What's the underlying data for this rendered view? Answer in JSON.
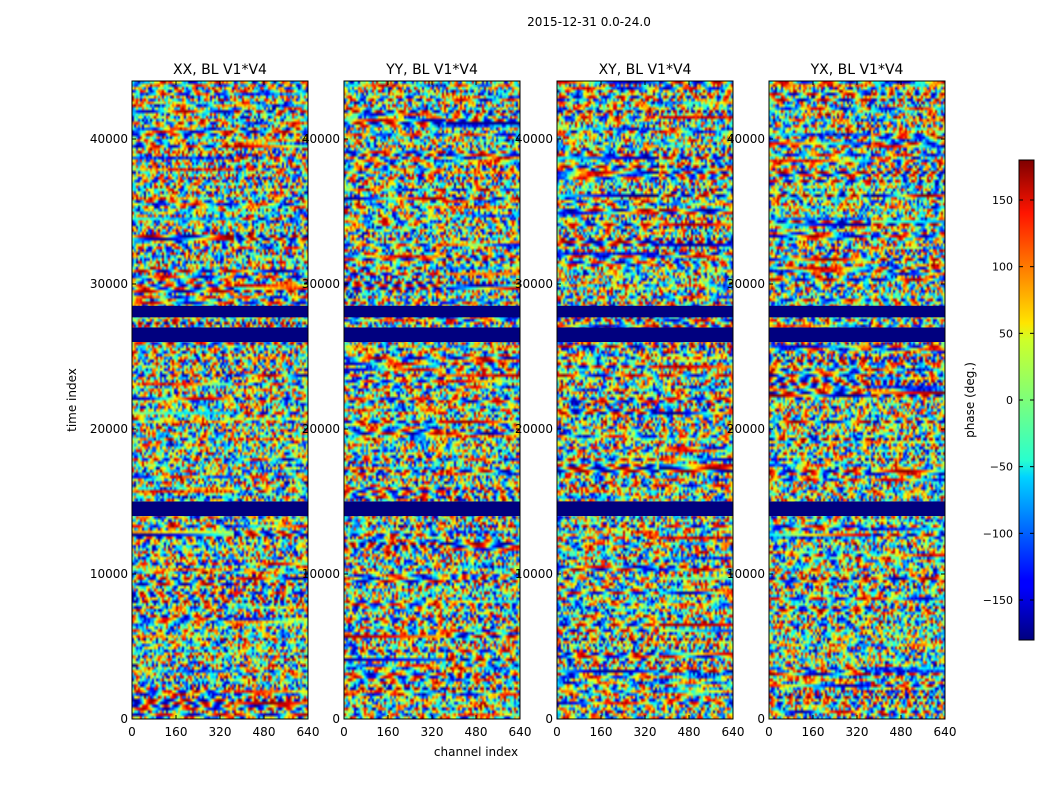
{
  "figure": {
    "suptitle": "2015-12-31 0.0-24.0",
    "xlabel": "channel index",
    "ylabel": "time index",
    "colorbar_label": "phase (deg.)"
  },
  "chart_data": {
    "type": "heatmap",
    "colormap": "jet",
    "xlim": [
      0,
      640
    ],
    "ylim": [
      0,
      44000
    ],
    "x_ticks": [
      0,
      160,
      320,
      480,
      640
    ],
    "y_ticks": [
      0,
      10000,
      20000,
      30000,
      40000
    ],
    "panels": [
      {
        "title": "XX, BL V1*V4"
      },
      {
        "title": "YY, BL V1*V4"
      },
      {
        "title": "XY, BL V1*V4"
      },
      {
        "title": "YX, BL V1*V4"
      }
    ],
    "colorbar": {
      "range": [
        -180,
        180
      ],
      "ticks": [
        -150,
        -100,
        -50,
        0,
        50,
        100,
        150
      ]
    },
    "flagged_rows": [
      [
        26000,
        27000
      ],
      [
        27700,
        28500
      ],
      [
        14000,
        15000
      ]
    ]
  }
}
